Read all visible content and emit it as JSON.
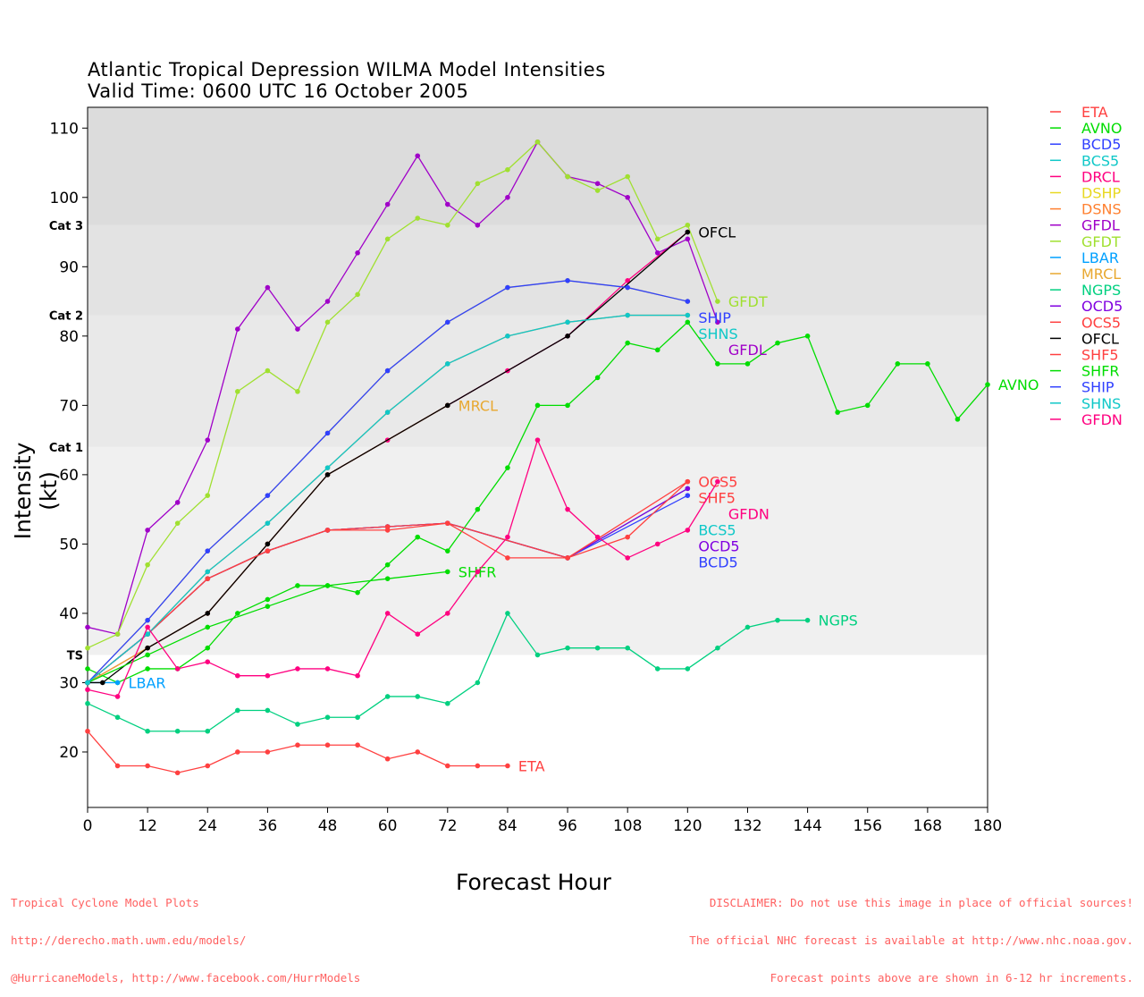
{
  "chart_data": {
    "type": "line",
    "title": "Atlantic Tropical Depression WILMA Model Intensities",
    "subtitle": "Valid Time: 0600 UTC 16 October 2005",
    "xlabel": "Forecast Hour",
    "ylabel": "Intensity (kt)",
    "xlim": [
      0,
      180
    ],
    "ylim": [
      12,
      113
    ],
    "xticks": [
      0,
      12,
      24,
      36,
      48,
      60,
      72,
      84,
      96,
      108,
      120,
      132,
      144,
      156,
      168,
      180
    ],
    "yticks": [
      20,
      30,
      40,
      50,
      60,
      70,
      80,
      90,
      100,
      110
    ],
    "category_lines": [
      {
        "label": "TS",
        "value": 34
      },
      {
        "label": "Cat 1",
        "value": 64
      },
      {
        "label": "Cat 2",
        "value": 83
      },
      {
        "label": "Cat 3",
        "value": 96
      }
    ],
    "legend_position": "right",
    "series": [
      {
        "name": "ETA",
        "color": "#ff4040",
        "x": [
          0,
          6,
          12,
          18,
          24,
          30,
          36,
          42,
          48,
          54,
          60,
          66,
          72,
          78,
          84
        ],
        "y": [
          23,
          18,
          18,
          17,
          18,
          20,
          20,
          21,
          21,
          21,
          19,
          20,
          18,
          18,
          18
        ],
        "end_label": true
      },
      {
        "name": "AVNO",
        "color": "#00dd00",
        "x": [
          0,
          6,
          12,
          18,
          24,
          30,
          36,
          42,
          48,
          54,
          60,
          66,
          72,
          78,
          84,
          90,
          96,
          102,
          108,
          114,
          120,
          126,
          132,
          138,
          144,
          150,
          156,
          162,
          168,
          174,
          180
        ],
        "y": [
          32,
          30,
          32,
          32,
          35,
          40,
          42,
          44,
          44,
          43,
          47,
          51,
          49,
          55,
          61,
          70,
          70,
          74,
          79,
          78,
          82,
          76,
          76,
          79,
          80,
          69,
          70,
          76,
          76,
          68,
          73
        ],
        "end_label": true
      },
      {
        "name": "BCD5",
        "color": "#3040ff",
        "x": [
          0,
          12,
          24,
          36,
          48,
          60,
          72,
          96,
          120
        ],
        "y": [
          30,
          37,
          45,
          49,
          52,
          52.5,
          53,
          48,
          57
        ],
        "end_label": true
      },
      {
        "name": "BCS5",
        "color": "#10c8c8",
        "x": [
          0,
          12,
          24,
          36,
          48,
          60,
          72,
          96,
          120
        ],
        "y": [
          30,
          37,
          45,
          49,
          52,
          52.5,
          53,
          48,
          58
        ],
        "end_label": true
      },
      {
        "name": "DRCL",
        "color": "#ff0080",
        "x": [
          0,
          12,
          24,
          36,
          48,
          60,
          72,
          84,
          96,
          108,
          120
        ],
        "y": [
          30,
          35,
          40,
          50,
          60,
          65,
          70,
          75,
          80,
          88,
          95
        ],
        "end_label": false
      },
      {
        "name": "DSHP",
        "color": "#e8d820",
        "x": [
          0,
          12,
          24,
          36,
          48,
          60,
          72,
          84,
          96,
          108,
          120
        ],
        "y": [
          30,
          39,
          49,
          57,
          66,
          75,
          82,
          87,
          88,
          87,
          85
        ],
        "end_label": false
      },
      {
        "name": "DSNS",
        "color": "#ff8030",
        "x": [
          0,
          12,
          24,
          36,
          48,
          60,
          72,
          84,
          96,
          108,
          120
        ],
        "y": [
          30,
          37,
          46,
          53,
          61,
          69,
          76,
          80,
          82,
          83,
          83
        ],
        "end_label": false
      },
      {
        "name": "GFDL",
        "color": "#a000c8",
        "x": [
          0,
          6,
          12,
          18,
          24,
          30,
          36,
          42,
          48,
          54,
          60,
          66,
          72,
          78,
          84,
          90,
          96,
          102,
          108,
          114,
          120,
          126
        ],
        "y": [
          38,
          37,
          52,
          56,
          65,
          81,
          87,
          81,
          85,
          92,
          99,
          106,
          99,
          96,
          100,
          108,
          103,
          102,
          100,
          92,
          94,
          82
        ],
        "end_label": true
      },
      {
        "name": "GFDT",
        "color": "#a0e030",
        "x": [
          0,
          6,
          12,
          18,
          24,
          30,
          36,
          42,
          48,
          54,
          60,
          66,
          72,
          78,
          84,
          90,
          96,
          102,
          108,
          114,
          120,
          126
        ],
        "y": [
          35,
          37,
          47,
          53,
          57,
          72,
          75,
          72,
          82,
          86,
          94,
          97,
          96,
          102,
          104,
          108,
          103,
          101,
          103,
          94,
          96,
          85
        ],
        "end_label": true
      },
      {
        "name": "LBAR",
        "color": "#00a0ff",
        "x": [
          0,
          6
        ],
        "y": [
          30,
          30
        ],
        "end_label": true
      },
      {
        "name": "MRCL",
        "color": "#e8a830",
        "x": [
          0,
          12,
          24,
          36,
          48,
          72
        ],
        "y": [
          30,
          35,
          40,
          50,
          60,
          70
        ],
        "end_label": true
      },
      {
        "name": "NGPS",
        "color": "#00d080",
        "x": [
          0,
          6,
          12,
          18,
          24,
          30,
          36,
          42,
          48,
          54,
          60,
          66,
          72,
          78,
          84,
          90,
          96,
          102,
          108,
          114,
          120,
          126,
          132,
          138,
          144
        ],
        "y": [
          27,
          25,
          23,
          23,
          23,
          26,
          26,
          24,
          25,
          25,
          28,
          28,
          27,
          30,
          40,
          34,
          35,
          35,
          35,
          32,
          32,
          35,
          38,
          39,
          39
        ],
        "end_label": true
      },
      {
        "name": "OCD5",
        "color": "#8000e0",
        "x": [
          0,
          12,
          24,
          36,
          48,
          60,
          72,
          96,
          120
        ],
        "y": [
          30,
          37,
          45,
          49,
          52,
          52.5,
          53,
          48,
          58
        ],
        "end_label": true
      },
      {
        "name": "OCS5",
        "color": "#ff4040",
        "x": [
          0,
          12,
          24,
          36,
          48,
          60,
          72,
          96,
          120
        ],
        "y": [
          30,
          37,
          45,
          49,
          52,
          52.5,
          53,
          48,
          59
        ],
        "end_label": true
      },
      {
        "name": "OFCL",
        "color": "#000000",
        "x": [
          0,
          3,
          12,
          24,
          36,
          48,
          72,
          96,
          120
        ],
        "y": [
          30,
          30,
          35,
          40,
          50,
          60,
          70,
          80,
          95
        ],
        "end_label": true
      },
      {
        "name": "SHF5",
        "color": "#ff4040",
        "x": [
          0,
          12,
          24,
          36,
          48,
          60,
          72,
          84,
          96,
          108,
          120
        ],
        "y": [
          30,
          37,
          45,
          49,
          52,
          52,
          53,
          48,
          48,
          51,
          59
        ],
        "end_label": true
      },
      {
        "name": "SHFR",
        "color": "#00dd00",
        "x": [
          0,
          12,
          24,
          36,
          48,
          60,
          72
        ],
        "y": [
          30,
          34,
          38,
          41,
          44,
          45,
          46
        ],
        "end_label": true
      },
      {
        "name": "SHIP",
        "color": "#3040ff",
        "x": [
          0,
          12,
          24,
          36,
          48,
          60,
          72,
          84,
          96,
          108,
          120
        ],
        "y": [
          30,
          39,
          49,
          57,
          66,
          75,
          82,
          87,
          88,
          87,
          85
        ],
        "end_label": true
      },
      {
        "name": "SHNS",
        "color": "#10c8c8",
        "x": [
          0,
          12,
          24,
          36,
          48,
          60,
          72,
          84,
          96,
          108,
          120
        ],
        "y": [
          30,
          37,
          46,
          53,
          61,
          69,
          76,
          80,
          82,
          83,
          83
        ],
        "end_label": true
      },
      {
        "name": "GFDN",
        "color": "#ff0080",
        "x": [
          0,
          6,
          12,
          18,
          24,
          30,
          36,
          42,
          48,
          54,
          60,
          66,
          72,
          78,
          84,
          90,
          96,
          102,
          108,
          114,
          120,
          126
        ],
        "y": [
          29,
          28,
          38,
          32,
          33,
          31,
          31,
          32,
          32,
          31,
          40,
          37,
          40,
          46,
          51,
          65,
          55,
          51,
          48,
          50,
          52,
          59
        ],
        "end_label": true
      }
    ]
  },
  "footer": {
    "left": [
      "Tropical Cyclone Model Plots",
      "http://derecho.math.uwm.edu/models/",
      "@HurricaneModels, http://www.facebook.com/HurrModels"
    ],
    "right": [
      "DISCLAIMER: Do not use this image in place of official sources!",
      "The official NHC forecast is available at http://www.nhc.noaa.gov.",
      "Forecast points above are shown in 6-12 hr increments."
    ]
  }
}
